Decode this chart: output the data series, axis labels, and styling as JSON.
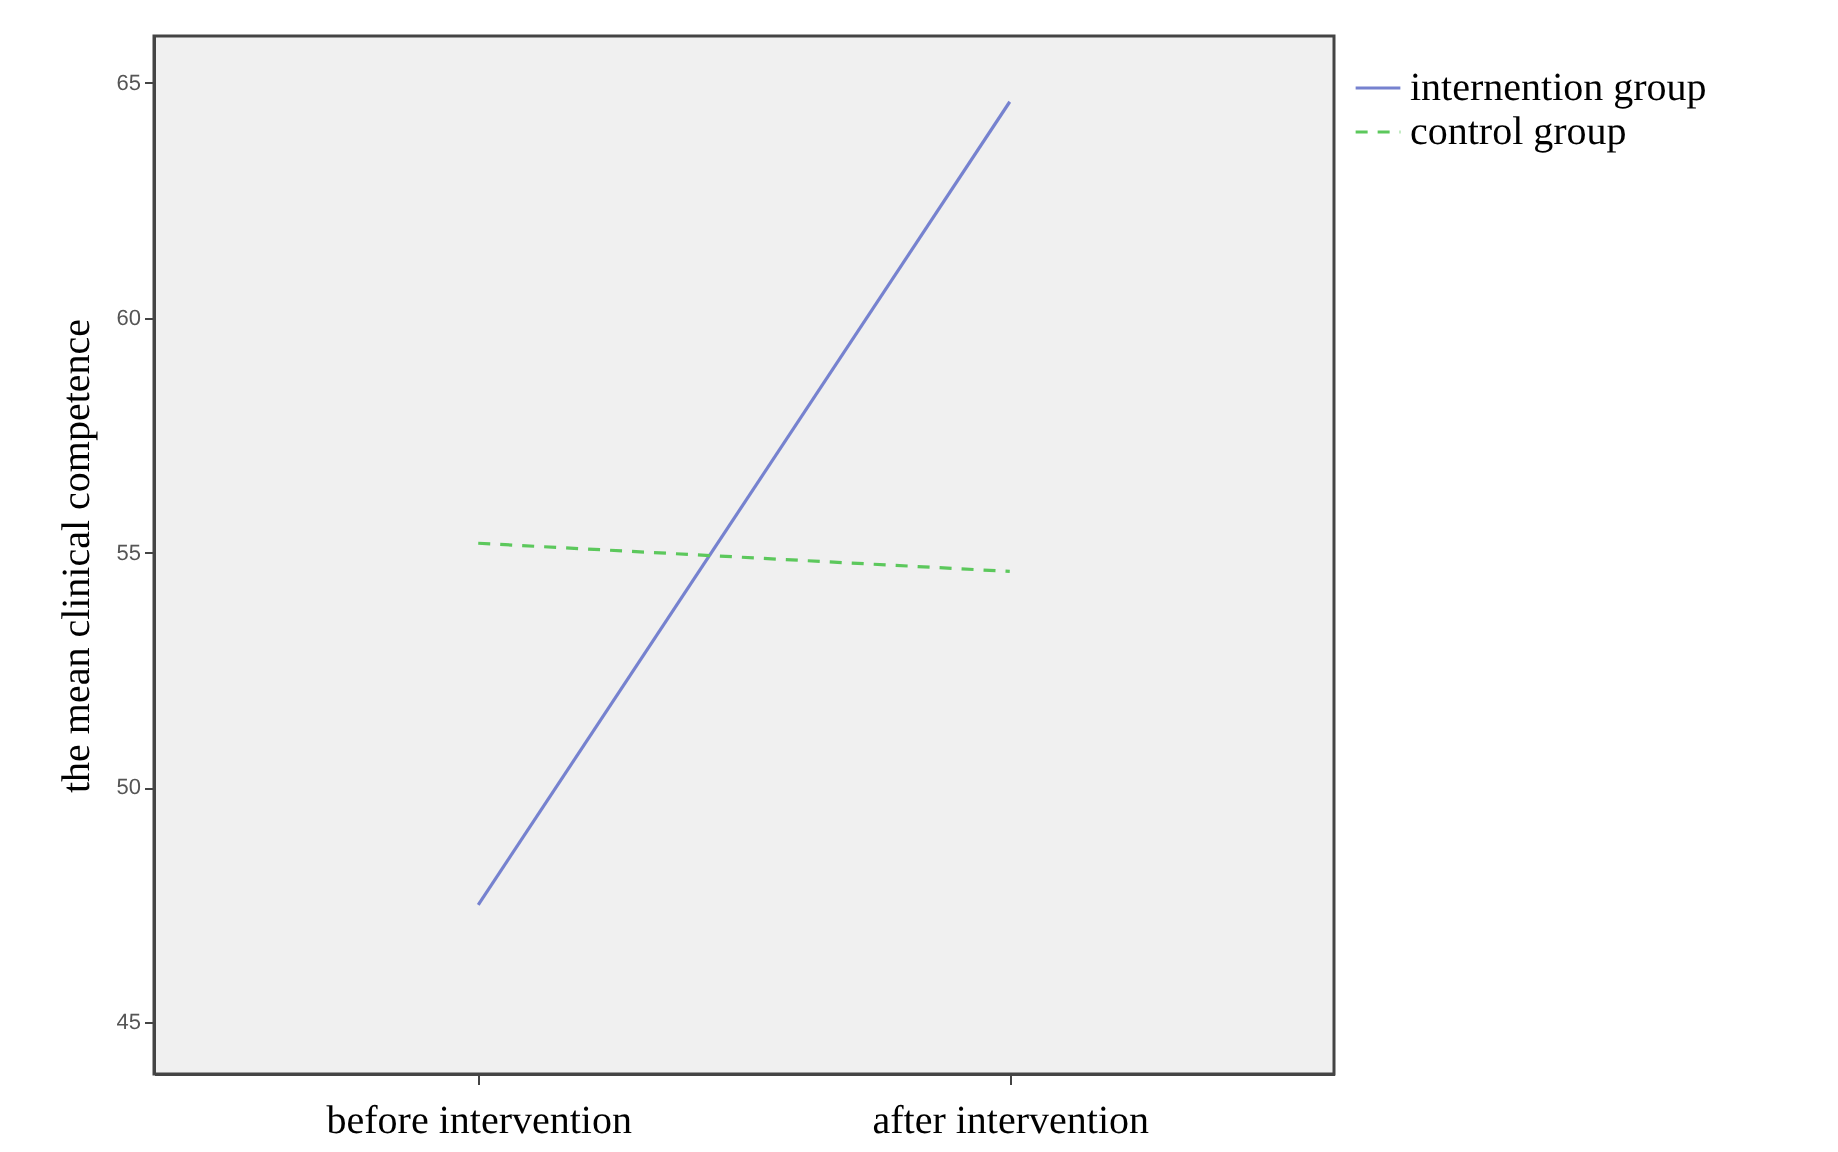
{
  "chart_data": {
    "type": "line",
    "ylabel": "the mean clinical competence",
    "categories": [
      "before intervention",
      "after intervention"
    ],
    "series": [
      {
        "name": "internention group",
        "color": "#7682cf",
        "line_style": "solid",
        "values": [
          47.5,
          64.6
        ]
      },
      {
        "name": "control group",
        "color": "#5cc85c",
        "line_style": "dashed",
        "values": [
          55.2,
          54.6
        ]
      }
    ],
    "ylim": [
      43.9,
      66.0
    ],
    "yticks": [
      45,
      50,
      55,
      60,
      65
    ],
    "grid": false,
    "legend": "top right"
  }
}
